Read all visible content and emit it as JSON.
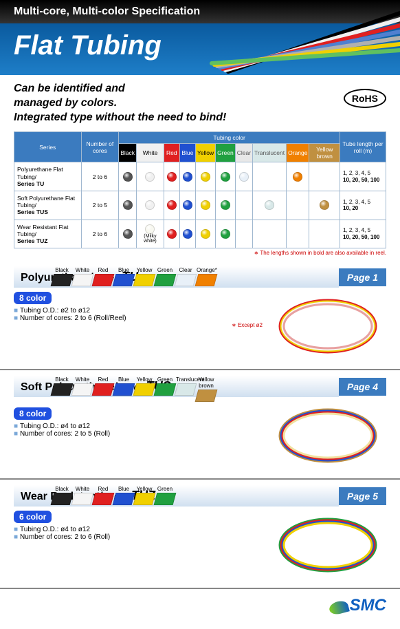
{
  "header": {
    "subtitle": "Multi-core, Multi-color Specification",
    "title": "Flat Tubing"
  },
  "intro": {
    "line1": "Can be identified and",
    "line2": "managed by colors.",
    "line3": "Integrated type without the need to bind!",
    "rohs": "RoHS"
  },
  "table": {
    "headers": {
      "series": "Series",
      "cores": "Number of cores",
      "tubing_color": "Tubing color",
      "length": "Tube length per roll (m)"
    },
    "color_headers": [
      {
        "label": "Black",
        "class": "bk"
      },
      {
        "label": "White",
        "class": "wh"
      },
      {
        "label": "Red",
        "class": "rd"
      },
      {
        "label": "Blue",
        "class": "bl"
      },
      {
        "label": "Yellow",
        "class": "yl"
      },
      {
        "label": "Green",
        "class": "gr"
      },
      {
        "label": "Clear",
        "class": "cl"
      },
      {
        "label": "Translucent",
        "class": "tl"
      },
      {
        "label": "Orange",
        "class": "or"
      },
      {
        "label": "Yellow brown",
        "class": "yb"
      }
    ],
    "rows": [
      {
        "series_text": "Polyurethane Flat Tubing/",
        "series_bold": "Series TU",
        "cores": "2 to 6",
        "dots": [
          "#555",
          "#f0f0f0",
          "#e02020",
          "#2050d0",
          "#f0d000",
          "#20a040",
          "#e8f0f8",
          "",
          "#f08000",
          ""
        ],
        "len_plain": "1, 2, 3, 4, 5",
        "len_bold": "10, 20, 50, 100"
      },
      {
        "series_text": "Soft Polyurethane Flat Tubing/",
        "series_bold": "Series TUS",
        "cores": "2 to 5",
        "dots": [
          "#555",
          "#f0f0f0",
          "#e02020",
          "#2050d0",
          "#f0d000",
          "#20a040",
          "",
          "#d8e8e8",
          "",
          "#c09040"
        ],
        "len_plain": "1, 2, 3, 4, 5",
        "len_bold": "10, 20"
      },
      {
        "series_text": "Wear Resistant Flat Tubing/",
        "series_bold": "Series TUZ",
        "cores": "2 to 6",
        "dots": [
          "#555",
          "#f8f8f0",
          "#e02020",
          "#2050d0",
          "#f0d000",
          "#20a040",
          "",
          "",
          "",
          ""
        ],
        "len_plain": "1, 2, 3, 4, 5",
        "len_bold": "10, 20, 50, 100",
        "milky": "(Milky white)"
      }
    ],
    "footnote": "∗ The lengths shown in bold are also available in reel."
  },
  "sections": [
    {
      "name": "Polyurethane",
      "series_label": "Series",
      "code": "TU",
      "page": "Page 1",
      "color_count": "8 color",
      "swatches": [
        {
          "label": "Black",
          "c": "#222"
        },
        {
          "label": "White",
          "c": "#f5f5f5"
        },
        {
          "label": "Red",
          "c": "#e02020"
        },
        {
          "label": "Blue",
          "c": "#2050d0"
        },
        {
          "label": "Yellow",
          "c": "#f0d000"
        },
        {
          "label": "Green",
          "c": "#20a040"
        },
        {
          "label": "Clear",
          "c": "#e8f0f8"
        },
        {
          "label": "Orange*",
          "c": "#f08000"
        }
      ],
      "spec1": "Tubing O.D.: ø2 to ø12",
      "spec2": "Number of cores: 2 to 6 (Roll/Reel)",
      "spec_note": "∗ Except ø2",
      "coil_colors": [
        "#e02020",
        "#f0d000",
        "#f8f8f0",
        "#e8a0a0"
      ]
    },
    {
      "name": "Soft Polyurethane",
      "series_label": "Series",
      "code": "TUS",
      "page": "Page 4",
      "color_count": "8 color",
      "swatches": [
        {
          "label": "Black",
          "c": "#222"
        },
        {
          "label": "White",
          "c": "#f5f5f5"
        },
        {
          "label": "Red",
          "c": "#e02020"
        },
        {
          "label": "Blue",
          "c": "#2050d0"
        },
        {
          "label": "Yellow",
          "c": "#f0d000"
        },
        {
          "label": "Green",
          "c": "#20a040"
        },
        {
          "label": "Translucent",
          "c": "#d8e8e8"
        },
        {
          "label": "Yellow brown",
          "c": "#c09040"
        }
      ],
      "spec1": "Tubing O.D.: ø4 to ø12",
      "spec2": "Number of cores: 2 to 5 (Roll)",
      "spec_note": "",
      "coil_colors": [
        "#c09040",
        "#2050d0",
        "#e02020",
        "#f0e0a0"
      ]
    },
    {
      "name": "Wear Resistant",
      "series_label": "Series",
      "code": "TUZ",
      "page": "Page 5",
      "color_count": "6 color",
      "swatches": [
        {
          "label": "Black",
          "c": "#222"
        },
        {
          "label": "White",
          "c": "#f5f5f5"
        },
        {
          "label": "Red",
          "c": "#e02020"
        },
        {
          "label": "Blue",
          "c": "#2050d0"
        },
        {
          "label": "Yellow",
          "c": "#f0d000"
        },
        {
          "label": "Green",
          "c": "#20a040"
        }
      ],
      "spec1": "Tubing O.D.: ø4 to ø12",
      "spec2": "Number of cores: 2 to 6 (Roll)",
      "spec_note": "",
      "coil_colors": [
        "#20a040",
        "#e02020",
        "#2050d0",
        "#f0d000"
      ]
    }
  ],
  "footer": {
    "logo": "SMC"
  },
  "header_tubes": [
    "#000",
    "#f0f0f0",
    "#e02020",
    "#5080d0",
    "#b0b0b0",
    "#f0d000",
    "#60c060"
  ]
}
